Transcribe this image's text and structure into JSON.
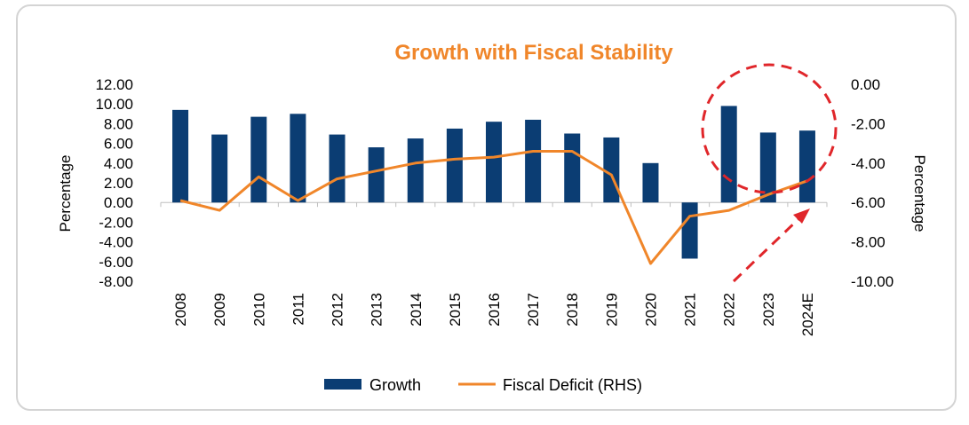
{
  "chart_data": {
    "type": "bar",
    "title": "Growth with Fiscal Stability",
    "categories": [
      "2008",
      "2009",
      "2010",
      "2011",
      "2012",
      "2013",
      "2014",
      "2015",
      "2016",
      "2017",
      "2018",
      "2019",
      "2020",
      "2021",
      "2022",
      "2023",
      "2024E"
    ],
    "ylabel": "Percentage",
    "y2label": "Percentage",
    "ylim": [
      -8,
      12
    ],
    "y2lim": [
      -10,
      0
    ],
    "yticks": [
      "12.00",
      "10.00",
      "8.00",
      "6.00",
      "4.00",
      "2.00",
      "0.00",
      "-2.00",
      "-4.00",
      "-6.00",
      "-8.00"
    ],
    "y2ticks": [
      "0.00",
      "-2.00",
      "-4.00",
      "-6.00",
      "-8.00",
      "-10.00"
    ],
    "series": [
      {
        "name": "Growth",
        "type": "bar",
        "axis": "left",
        "color": "#0b3d73",
        "values": [
          9.4,
          6.9,
          8.7,
          9.0,
          6.9,
          5.6,
          6.5,
          7.5,
          8.2,
          8.4,
          7.0,
          6.6,
          4.0,
          -5.7,
          9.8,
          7.1,
          7.3
        ]
      },
      {
        "name": "Fiscal Deficit (RHS)",
        "type": "line",
        "axis": "right",
        "color": "#f0862a",
        "values": [
          -5.9,
          -6.4,
          -4.7,
          -5.9,
          -4.8,
          -4.4,
          -4.0,
          -3.8,
          -3.7,
          -3.4,
          -3.4,
          -4.6,
          -9.1,
          -6.7,
          -6.4,
          -5.6,
          -4.9
        ]
      }
    ],
    "legend_position": "bottom",
    "grid": false,
    "annotations": [
      "red dashed ellipse around 2022-2024E",
      "red dashed arrow toward 2024E"
    ],
    "annotation_color": "#e0262a"
  }
}
